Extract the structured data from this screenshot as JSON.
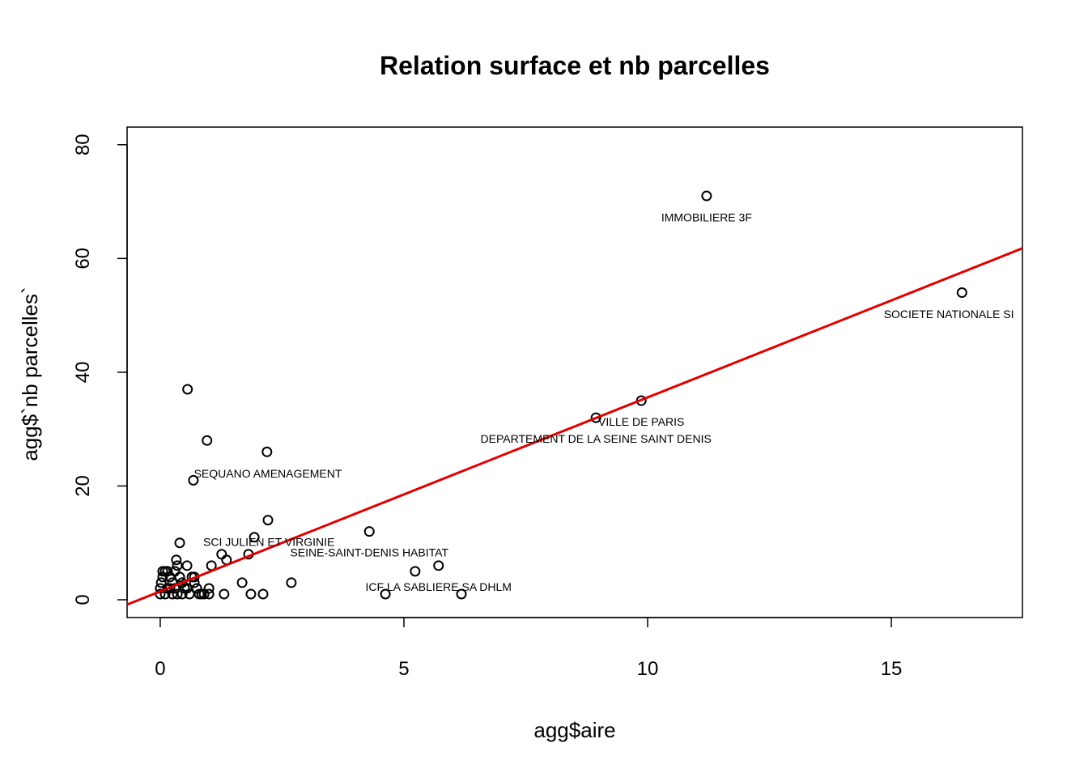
{
  "chart_data": {
    "type": "scatter",
    "title": "Relation surface et nb parcelles",
    "x_label": "agg$aire",
    "y_label": "agg$`nb parcelles`",
    "xlim": [
      -0.68,
      17.69
    ],
    "ylim": [
      -3.13,
      83.1
    ],
    "xticks": [
      0,
      5,
      10,
      15
    ],
    "yticks": [
      0,
      20,
      40,
      60,
      80
    ],
    "point_color": "#000000",
    "x": [
      11.21,
      16.45,
      9.87,
      8.94,
      0.56,
      0.96,
      2.19,
      0.68,
      2.21,
      4.29,
      1.93,
      0.4,
      1.26,
      1.81,
      1.36,
      0.33,
      5.71,
      1.05,
      0.55,
      5.23,
      2.69,
      1.68,
      4.62,
      6.18,
      1.31,
      1.86,
      2.11,
      1.0,
      1.0,
      0,
      0,
      0.02,
      0.05,
      0.05,
      0.1,
      0.15,
      0.2,
      0.25,
      0.3,
      0.35,
      0.4,
      0.45,
      0.5,
      0.6,
      0.65,
      0.7,
      0.75,
      0.8,
      0.85,
      0.9,
      0.3,
      0.25,
      0.1,
      0.15,
      0.7,
      0.55,
      0.2,
      0.35,
      0.45
    ],
    "y": [
      71,
      54,
      35,
      32,
      37,
      28,
      26,
      21,
      14,
      12,
      11,
      10,
      8,
      8,
      7,
      7,
      6,
      6,
      6,
      5,
      3,
      3,
      1,
      1,
      1,
      1,
      1,
      2,
      1,
      1,
      2,
      3,
      4,
      5,
      5,
      5,
      4,
      3,
      2,
      6,
      4,
      3,
      2,
      1,
      4,
      3,
      2,
      1,
      1,
      1,
      5,
      1,
      1,
      2,
      4,
      2,
      2,
      1,
      1
    ],
    "abline": {
      "intercept": 1.47,
      "slope": 3.41,
      "color": "#e00000"
    },
    "annotations": [
      {
        "text": "IMMOBILIERE 3F",
        "x": 11.21,
        "y": 67.2
      },
      {
        "text": "SOCIETE NATIONALE SI",
        "x": 16.18,
        "y": 50.2
      },
      {
        "text": "VILLE DE PARIS",
        "x": 9.87,
        "y": 31.3
      },
      {
        "text": "DEPARTEMENT DE LA SEINE SAINT DENIS",
        "x": 8.94,
        "y": 28.3
      },
      {
        "text": "SEQUANO AMENAGEMENT",
        "x": 2.21,
        "y": 22.2
      },
      {
        "text": "SCI JULIEN ET VIRGINIE",
        "x": 2.23,
        "y": 10.2
      },
      {
        "text": "SEINE-SAINT-DENIS HABITAT",
        "x": 4.29,
        "y": 8.3
      },
      {
        "text": "ICF LA SABLIERE SA DHLM",
        "x": 5.71,
        "y": 2.3
      }
    ]
  }
}
